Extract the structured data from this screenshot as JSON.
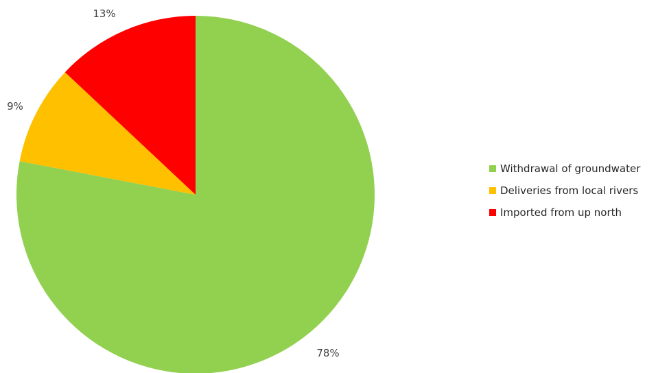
{
  "chart_data": {
    "type": "pie",
    "title": "",
    "legend_position": "right",
    "start_angle_deg": 0,
    "direction": "clockwise",
    "slices": [
      {
        "name": "Withdrawal of groundwater",
        "value": 78,
        "label": "78%",
        "color": "#92d050"
      },
      {
        "name": "Deliveries from local rivers",
        "value": 9,
        "label": "9%",
        "color": "#ffc000"
      },
      {
        "name": "Imported from up north",
        "value": 13,
        "label": "13%",
        "color": "#ff0000"
      }
    ]
  }
}
